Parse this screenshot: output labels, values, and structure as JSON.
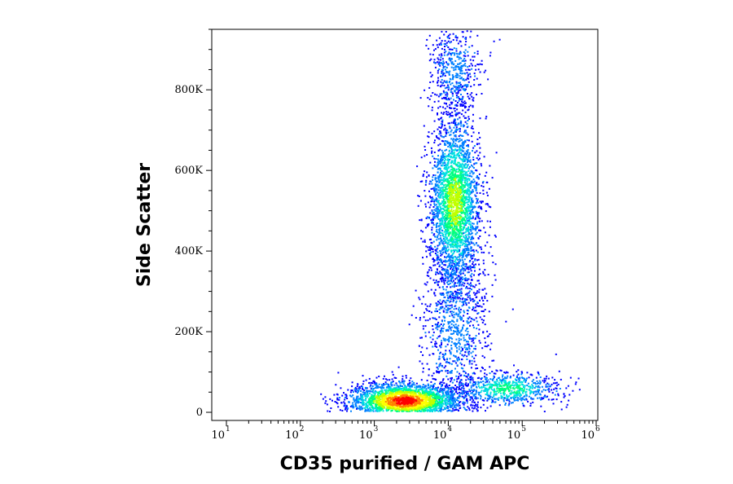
{
  "chart_data": {
    "type": "scatter",
    "subtype": "flow-cytometry density dot plot",
    "xlabel": "CD35 purified / GAM APC",
    "ylabel": "Side Scatter",
    "x_scale": "log",
    "xlim": [
      10,
      1000000
    ],
    "x_ticks": [
      {
        "base": "10",
        "exp": "1",
        "value": 10
      },
      {
        "base": "10",
        "exp": "2",
        "value": 100
      },
      {
        "base": "10",
        "exp": "3",
        "value": 1000
      },
      {
        "base": "10",
        "exp": "4",
        "value": 10000
      },
      {
        "base": "10",
        "exp": "5",
        "value": 100000
      },
      {
        "base": "10",
        "exp": "6",
        "value": 1000000
      }
    ],
    "y_scale": "linear",
    "ylim": [
      0,
      950000
    ],
    "y_ticks": [
      {
        "label": "0",
        "value": 0
      },
      {
        "label": "200K",
        "value": 200000
      },
      {
        "label": "400K",
        "value": 400000
      },
      {
        "label": "600K",
        "value": 600000
      },
      {
        "label": "800K",
        "value": 800000
      }
    ],
    "grid": false,
    "density_colors": [
      "#0000ff",
      "#0080ff",
      "#00e0e0",
      "#00ff80",
      "#c0ff00",
      "#ffff00",
      "#ff8000",
      "#ff0000"
    ],
    "populations": [
      {
        "center_x": 2500,
        "center_y": 30000,
        "log_spread_x": 0.38,
        "spread_y": 22000,
        "count": 2600,
        "max_density_level": 7
      },
      {
        "center_x": 12000,
        "center_y": 520000,
        "log_spread_x": 0.17,
        "spread_y": 105000,
        "count": 2700,
        "max_density_level": 4
      },
      {
        "center_x": 12000,
        "center_y": 220000,
        "log_spread_x": 0.22,
        "spread_y": 110000,
        "count": 900,
        "max_density_level": 1
      },
      {
        "center_x": 12000,
        "center_y": 850000,
        "log_spread_x": 0.16,
        "spread_y": 60000,
        "count": 500,
        "max_density_level": 1
      },
      {
        "center_x": 60000,
        "center_y": 60000,
        "log_spread_x": 0.35,
        "spread_y": 20000,
        "count": 700,
        "max_density_level": 3
      }
    ]
  }
}
